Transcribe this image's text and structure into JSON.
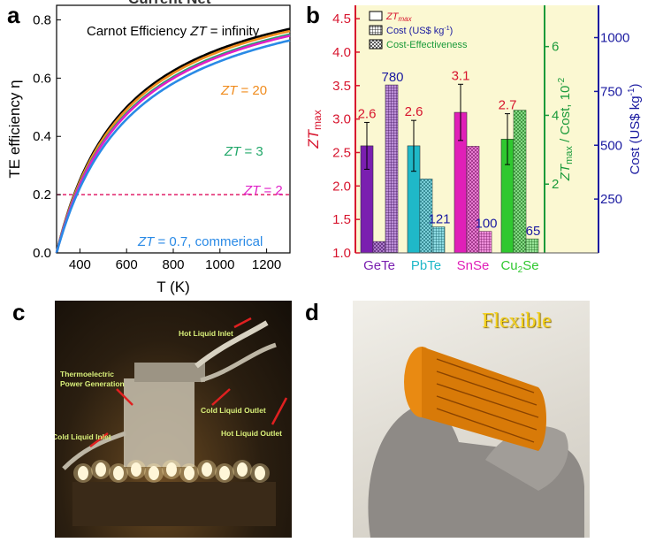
{
  "panels": {
    "a": "a",
    "b": "b",
    "c": "c",
    "d": "d"
  },
  "colors": {
    "carnot": "#000000",
    "zt20": "#f08c1e",
    "zt3": "#22a86a",
    "zt2": "#e020c8",
    "zt07": "#2a8ae6",
    "dashed": "#e0206a",
    "zt_axis": "#d7152e",
    "cost_axis": "#1a1aa0",
    "ce_axis": "#1a9a3a",
    "bg_b": "#fbf8d2"
  },
  "chart_data": [
    {
      "type": "line",
      "title": "Carnot Efficiency ZT = infinity",
      "header_partial": "Current Net",
      "xlabel": "T (K)",
      "ylabel": "TE efficiency η",
      "xlim": [
        300,
        1300
      ],
      "ylim": [
        0,
        0.85
      ],
      "cold_side_T": 300,
      "xticks": [
        "400",
        "600",
        "800",
        "1000",
        "1200"
      ],
      "yticks": [
        "0.0",
        "0.2",
        "0.4",
        "0.6",
        "0.8"
      ],
      "reference_line": {
        "y": 0.2,
        "style": "dashed"
      },
      "series": [
        {
          "name": "Carnot Efficiency ZT = infinity",
          "zt": "inf",
          "label_parts": [
            "Carnot Efficiency ",
            "ZT",
            " = infinity"
          ]
        },
        {
          "name": "ZT = 20",
          "zt": 20,
          "label_parts": [
            "ZT",
            " = 20"
          ]
        },
        {
          "name": "ZT = 3",
          "zt": 3,
          "label_parts": [
            "ZT",
            " = 3"
          ]
        },
        {
          "name": "ZT = 2",
          "zt": 2,
          "label_parts": [
            "ZT",
            " = 2"
          ]
        },
        {
          "name": "ZT = 0.7, commerical",
          "zt": 0.7,
          "label_parts": [
            "ZT",
            " = 0.7, commerical"
          ]
        }
      ]
    },
    {
      "type": "bar",
      "categories": [
        "GeTe",
        "PbTe",
        "SnSe",
        "Cu₂Se"
      ],
      "category_parts": [
        [
          "GeTe",
          ""
        ],
        [
          "PbTe",
          ""
        ],
        [
          "SnSe",
          ""
        ],
        [
          "Cu",
          "2",
          "Se"
        ]
      ],
      "category_colors": [
        "#7a1fb0",
        "#1fb8c8",
        "#e01fb8",
        "#2fc82f"
      ],
      "series": [
        {
          "name": "ZTmax",
          "axis": "left",
          "values": [
            2.6,
            2.6,
            3.1,
            2.7
          ],
          "errors": [
            0.35,
            0.38,
            0.42,
            0.38
          ],
          "labels": [
            "2.6",
            "2.6",
            "3.1",
            "2.7"
          ]
        },
        {
          "name": "Cost (US$ kg⁻¹)",
          "axis": "right",
          "values": [
            780,
            121,
            100,
            65
          ],
          "labels": [
            "780",
            "121",
            "100",
            "65"
          ]
        },
        {
          "name": "Cost-Effectiveness",
          "axis": "middle",
          "values": [
            0.33,
            2.15,
            3.1,
            4.15
          ]
        }
      ],
      "legend": [
        {
          "main": "ZT",
          "sub": "max",
          "rest": ""
        },
        {
          "main": "Cost (US$ kg",
          "sup": "-1",
          "rest": ")"
        },
        {
          "main": "Cost-Effectiveness",
          "rest": ""
        }
      ],
      "left_axis": {
        "label_main": "ZT",
        "label_sub": "max",
        "ylim": [
          1.0,
          4.7
        ],
        "ticks": [
          "1.0",
          "1.5",
          "2.0",
          "2.5",
          "3.0",
          "3.5",
          "4.0",
          "4.5"
        ]
      },
      "middle_axis": {
        "label_a": "ZT",
        "label_sub": "max",
        "label_b": " / Cost, 10",
        "label_sup": "-2",
        "ylim": [
          0,
          7.2
        ],
        "ticks": [
          "2",
          "4",
          "6"
        ]
      },
      "right_axis": {
        "label_main": "Cost (US$ kg",
        "label_sup": "-1",
        "label_end": ")",
        "ylim": [
          0,
          1150
        ],
        "ticks": [
          "250",
          "500",
          "750",
          "1000"
        ]
      }
    }
  ],
  "photo_c": {
    "labels": [
      "Hot Liquid Inlet",
      "Thermoelectric",
      "Power Generation",
      "Cold Liquid Outlet",
      "Hot Liquid Outlet",
      "Cold Liquid Inlet"
    ]
  },
  "photo_d": {
    "label": "Flexible"
  }
}
